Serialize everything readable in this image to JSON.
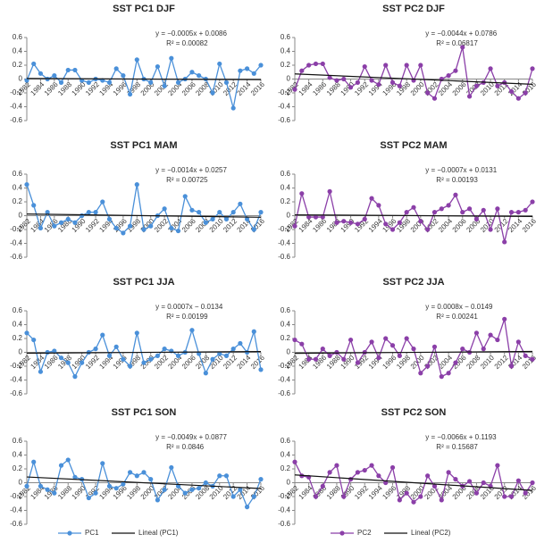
{
  "chart_data": [
    {
      "type": "line",
      "title": "SST PC1 DJF",
      "x": [
        1982,
        1983,
        1984,
        1985,
        1986,
        1987,
        1988,
        1989,
        1990,
        1991,
        1992,
        1993,
        1994,
        1995,
        1996,
        1997,
        1998,
        1999,
        2000,
        2001,
        2002,
        2003,
        2004,
        2005,
        2006,
        2007,
        2008,
        2009,
        2010,
        2011,
        2012,
        2013,
        2014,
        2015,
        2016
      ],
      "series": [
        {
          "color": "#4a90d9",
          "values": [
            -0.02,
            0.22,
            0.08,
            0.0,
            0.05,
            -0.05,
            0.13,
            0.13,
            -0.02,
            -0.05,
            0.0,
            -0.02,
            -0.05,
            0.15,
            0.05,
            -0.22,
            0.28,
            0.0,
            -0.05,
            0.18,
            -0.1,
            0.3,
            -0.05,
            0.0,
            0.1,
            0.05,
            0.0,
            -0.2,
            0.22,
            -0.05,
            -0.42,
            0.12,
            0.15,
            0.08,
            0.2
          ]
        }
      ],
      "trendline": {
        "slope": -0.0005,
        "intercept": 0.0086
      },
      "equation": "y = −0.0005x + 0.0086",
      "r2_label": "R² = 0.00082",
      "xlim": [
        1982,
        2016
      ],
      "xticks": [
        1982,
        1984,
        1986,
        1988,
        1990,
        1992,
        1994,
        1996,
        1998,
        2000,
        2002,
        2004,
        2006,
        2008,
        2010,
        2012,
        2014,
        2016
      ],
      "ylim": [
        -0.6,
        0.6
      ],
      "yticks": [
        0.6,
        0.4,
        0.2,
        0,
        -0.2,
        -0.4,
        -0.6
      ]
    },
    {
      "type": "line",
      "title": "SST PC2 DJF",
      "x": [
        1982,
        1983,
        1984,
        1985,
        1986,
        1987,
        1988,
        1989,
        1990,
        1991,
        1992,
        1993,
        1994,
        1995,
        1996,
        1997,
        1998,
        1999,
        2000,
        2001,
        2002,
        2003,
        2004,
        2005,
        2006,
        2007,
        2008,
        2009,
        2010,
        2011,
        2012,
        2013,
        2014,
        2015,
        2016
      ],
      "series": [
        {
          "color": "#8b3fa8",
          "values": [
            -0.15,
            0.12,
            0.2,
            0.22,
            0.22,
            0.02,
            -0.02,
            0.0,
            -0.12,
            -0.05,
            0.18,
            -0.02,
            -0.08,
            0.2,
            -0.05,
            -0.1,
            0.2,
            -0.02,
            0.2,
            -0.2,
            -0.28,
            0.0,
            0.05,
            0.12,
            0.46,
            -0.25,
            -0.1,
            -0.05,
            0.15,
            -0.1,
            -0.05,
            -0.18,
            -0.28,
            -0.2,
            0.15
          ]
        }
      ],
      "trendline": {
        "slope": -0.0044,
        "intercept": 0.0786
      },
      "equation": "y = −0.0044x + 0.0786",
      "r2_label": "R² = 0.06817",
      "xlim": [
        1982,
        2016
      ],
      "xticks": [
        1982,
        1984,
        1986,
        1988,
        1990,
        1992,
        1994,
        1996,
        1998,
        2000,
        2002,
        2004,
        2006,
        2008,
        2010,
        2012,
        2014,
        2016
      ],
      "ylim": [
        -0.6,
        0.6
      ],
      "yticks": [
        0.6,
        0.4,
        0.2,
        0,
        -0.2,
        -0.4,
        -0.6
      ]
    },
    {
      "type": "line",
      "title": "SST PC1 MAM",
      "x": [
        1982,
        1983,
        1984,
        1985,
        1986,
        1987,
        1988,
        1989,
        1990,
        1991,
        1992,
        1993,
        1994,
        1995,
        1996,
        1997,
        1998,
        1999,
        2000,
        2001,
        2002,
        2003,
        2004,
        2005,
        2006,
        2007,
        2008,
        2009,
        2010,
        2011,
        2012,
        2013,
        2014,
        2015,
        2016
      ],
      "series": [
        {
          "color": "#4a90d9",
          "values": [
            0.45,
            0.15,
            -0.18,
            0.05,
            -0.15,
            -0.1,
            -0.05,
            -0.1,
            0.0,
            0.05,
            0.05,
            0.2,
            -0.05,
            -0.18,
            -0.25,
            -0.15,
            0.45,
            -0.2,
            -0.15,
            0.0,
            0.1,
            -0.18,
            -0.22,
            0.28,
            0.08,
            0.05,
            -0.1,
            -0.05,
            0.05,
            -0.05,
            0.05,
            0.17,
            -0.05,
            -0.2,
            0.05
          ]
        }
      ],
      "trendline": {
        "slope": -0.0014,
        "intercept": 0.0257
      },
      "equation": "y = −0.0014x + 0.0257",
      "r2_label": "R² = 0.00725",
      "xlim": [
        1982,
        2016
      ],
      "xticks": [
        1982,
        1984,
        1986,
        1988,
        1990,
        1992,
        1994,
        1996,
        1998,
        2000,
        2002,
        2004,
        2006,
        2008,
        2010,
        2012,
        2014,
        2016
      ],
      "ylim": [
        -0.6,
        0.6
      ],
      "yticks": [
        0.6,
        0.4,
        0.2,
        0,
        -0.2,
        -0.4,
        -0.6
      ]
    },
    {
      "type": "line",
      "title": "SST PC2 MAM",
      "x": [
        1982,
        1983,
        1984,
        1985,
        1986,
        1987,
        1988,
        1989,
        1990,
        1991,
        1992,
        1993,
        1994,
        1995,
        1996,
        1997,
        1998,
        1999,
        2000,
        2001,
        2002,
        2003,
        2004,
        2005,
        2006,
        2007,
        2008,
        2009,
        2010,
        2011,
        2012,
        2013,
        2014,
        2015,
        2016
      ],
      "series": [
        {
          "color": "#8b3fa8",
          "values": [
            -0.15,
            0.32,
            -0.02,
            -0.02,
            -0.02,
            0.35,
            -0.1,
            -0.08,
            -0.1,
            -0.12,
            -0.05,
            0.25,
            0.15,
            -0.12,
            -0.2,
            -0.1,
            0.05,
            0.12,
            -0.08,
            -0.2,
            0.05,
            0.1,
            0.15,
            0.3,
            0.05,
            0.1,
            -0.05,
            0.08,
            -0.2,
            0.1,
            -0.38,
            0.05,
            0.05,
            0.08,
            0.2
          ]
        }
      ],
      "trendline": {
        "slope": -0.0007,
        "intercept": 0.0131
      },
      "equation": "y = −0.0007x + 0.0131",
      "r2_label": "R² = 0.00193",
      "xlim": [
        1982,
        2016
      ],
      "xticks": [
        1982,
        1984,
        1986,
        1988,
        1990,
        1992,
        1994,
        1996,
        1998,
        2000,
        2002,
        2004,
        2006,
        2008,
        2010,
        2012,
        2014,
        2016
      ],
      "ylim": [
        -0.6,
        0.6
      ],
      "yticks": [
        0.6,
        0.4,
        0.2,
        0,
        -0.2,
        -0.4,
        -0.6
      ]
    },
    {
      "type": "line",
      "title": "SST PC1 JJA",
      "x": [
        1982,
        1983,
        1984,
        1985,
        1986,
        1987,
        1988,
        1989,
        1990,
        1991,
        1992,
        1993,
        1994,
        1995,
        1996,
        1997,
        1998,
        1999,
        2000,
        2001,
        2002,
        2003,
        2004,
        2005,
        2006,
        2007,
        2008,
        2009,
        2010,
        2011,
        2012,
        2013,
        2014,
        2015,
        2016
      ],
      "series": [
        {
          "color": "#4a90d9",
          "values": [
            0.28,
            0.18,
            -0.28,
            0.0,
            0.02,
            -0.08,
            -0.15,
            -0.35,
            -0.15,
            0.0,
            0.05,
            0.25,
            -0.05,
            0.08,
            -0.1,
            -0.2,
            0.28,
            -0.15,
            -0.1,
            -0.05,
            0.05,
            0.02,
            -0.05,
            0.0,
            0.32,
            -0.02,
            -0.3,
            -0.1,
            -0.02,
            -0.05,
            0.05,
            0.13,
            0.0,
            0.3,
            -0.25
          ]
        }
      ],
      "trendline": {
        "slope": 0.0007,
        "intercept": -0.0134
      },
      "equation": "y = 0.0007x − 0.0134",
      "r2_label": "R² = 0.00199",
      "xlim": [
        1982,
        2016
      ],
      "xticks": [
        1982,
        1984,
        1986,
        1988,
        1990,
        1992,
        1994,
        1996,
        1998,
        2000,
        2002,
        2004,
        2006,
        2008,
        2010,
        2012,
        2014,
        2016
      ],
      "ylim": [
        -0.6,
        0.6
      ],
      "yticks": [
        0.6,
        0.4,
        0.2,
        0,
        -0.2,
        -0.4,
        -0.6
      ]
    },
    {
      "type": "line",
      "title": "SST PC2 JJA",
      "x": [
        1982,
        1983,
        1984,
        1985,
        1986,
        1987,
        1988,
        1989,
        1990,
        1991,
        1992,
        1993,
        1994,
        1995,
        1996,
        1997,
        1998,
        1999,
        2000,
        2001,
        2002,
        2003,
        2004,
        2005,
        2006,
        2007,
        2008,
        2009,
        2010,
        2011,
        2012,
        2013,
        2014,
        2015,
        2016
      ],
      "series": [
        {
          "color": "#8b3fa8",
          "values": [
            0.18,
            0.12,
            -0.1,
            -0.1,
            0.05,
            -0.05,
            0.0,
            -0.1,
            0.18,
            -0.15,
            0.0,
            0.15,
            -0.08,
            0.2,
            0.1,
            -0.05,
            0.2,
            0.05,
            -0.3,
            -0.2,
            0.08,
            -0.35,
            -0.3,
            -0.15,
            0.05,
            0.0,
            0.28,
            0.05,
            0.25,
            0.18,
            0.48,
            -0.2,
            0.15,
            -0.05,
            -0.1
          ]
        }
      ],
      "trendline": {
        "slope": 0.0008,
        "intercept": -0.0149
      },
      "equation": "y = 0.0008x − 0.0149",
      "r2_label": "R² = 0.00241",
      "xlim": [
        1982,
        2016
      ],
      "xticks": [
        1982,
        1984,
        1986,
        1988,
        1990,
        1992,
        1994,
        1996,
        1998,
        2000,
        2002,
        2004,
        2006,
        2008,
        2010,
        2012,
        2014,
        2016
      ],
      "ylim": [
        -0.6,
        0.6
      ],
      "yticks": [
        0.6,
        0.4,
        0.2,
        0,
        -0.2,
        -0.4,
        -0.6
      ]
    },
    {
      "type": "line",
      "title": "SST PC1 SON",
      "x": [
        1982,
        1983,
        1984,
        1985,
        1986,
        1987,
        1988,
        1989,
        1990,
        1991,
        1992,
        1993,
        1994,
        1995,
        1996,
        1997,
        1998,
        1999,
        2000,
        2001,
        2002,
        2003,
        2004,
        2005,
        2006,
        2007,
        2008,
        2009,
        2010,
        2011,
        2012,
        2013,
        2014,
        2015,
        2016
      ],
      "series": [
        {
          "name": "PC1",
          "color": "#4a90d9",
          "values": [
            -0.05,
            0.3,
            -0.05,
            -0.1,
            -0.15,
            0.25,
            0.33,
            0.08,
            0.05,
            -0.22,
            -0.15,
            0.28,
            -0.05,
            -0.08,
            -0.02,
            0.15,
            0.1,
            0.15,
            0.05,
            -0.25,
            -0.1,
            0.22,
            -0.05,
            -0.15,
            -0.1,
            -0.08,
            0.0,
            -0.05,
            0.1,
            0.1,
            -0.2,
            -0.1,
            -0.35,
            -0.2,
            0.05
          ]
        }
      ],
      "trendline": {
        "name": "Lineal (PC1)",
        "slope": -0.0049,
        "intercept": 0.0877
      },
      "equation": "y = −0.0049x + 0.0877",
      "r2_label": "R² = 0.0846",
      "xlim": [
        1982,
        2016
      ],
      "xticks": [
        1982,
        1984,
        1986,
        1988,
        1990,
        1992,
        1994,
        1996,
        1998,
        2000,
        2002,
        2004,
        2006,
        2008,
        2010,
        2012,
        2014,
        2016
      ],
      "ylim": [
        -0.6,
        0.6
      ],
      "yticks": [
        0.6,
        0.4,
        0.2,
        0,
        -0.2,
        -0.4,
        -0.6
      ]
    },
    {
      "type": "line",
      "title": "SST PC2 SON",
      "x": [
        1982,
        1983,
        1984,
        1985,
        1986,
        1987,
        1988,
        1989,
        1990,
        1991,
        1992,
        1993,
        1994,
        1995,
        1996,
        1997,
        1998,
        1999,
        2000,
        2001,
        2002,
        2003,
        2004,
        2005,
        2006,
        2007,
        2008,
        2009,
        2010,
        2011,
        2012,
        2013,
        2014,
        2015,
        2016
      ],
      "series": [
        {
          "name": "PC2",
          "color": "#8b3fa8",
          "values": [
            0.3,
            0.1,
            0.08,
            -0.2,
            -0.05,
            0.15,
            0.25,
            -0.2,
            0.05,
            0.15,
            0.18,
            0.25,
            0.1,
            0.0,
            0.22,
            -0.25,
            -0.15,
            -0.28,
            -0.2,
            0.1,
            -0.05,
            -0.25,
            0.15,
            0.05,
            -0.05,
            0.02,
            -0.15,
            0.0,
            -0.05,
            0.25,
            -0.2,
            -0.2,
            0.03,
            -0.15,
            0.0
          ]
        }
      ],
      "trendline": {
        "name": "Lineal (PC2)",
        "slope": -0.0066,
        "intercept": 0.1193
      },
      "equation": "y = −0.0066x + 0.1193",
      "r2_label": "R² = 0.15687",
      "xlim": [
        1982,
        2016
      ],
      "xticks": [
        1982,
        1984,
        1986,
        1988,
        1990,
        1992,
        1994,
        1996,
        1998,
        2000,
        2002,
        2004,
        2006,
        2008,
        2010,
        2012,
        2014,
        2016
      ],
      "ylim": [
        -0.6,
        0.6
      ],
      "yticks": [
        0.6,
        0.4,
        0.2,
        0,
        -0.2,
        -0.4,
        -0.6
      ]
    }
  ]
}
